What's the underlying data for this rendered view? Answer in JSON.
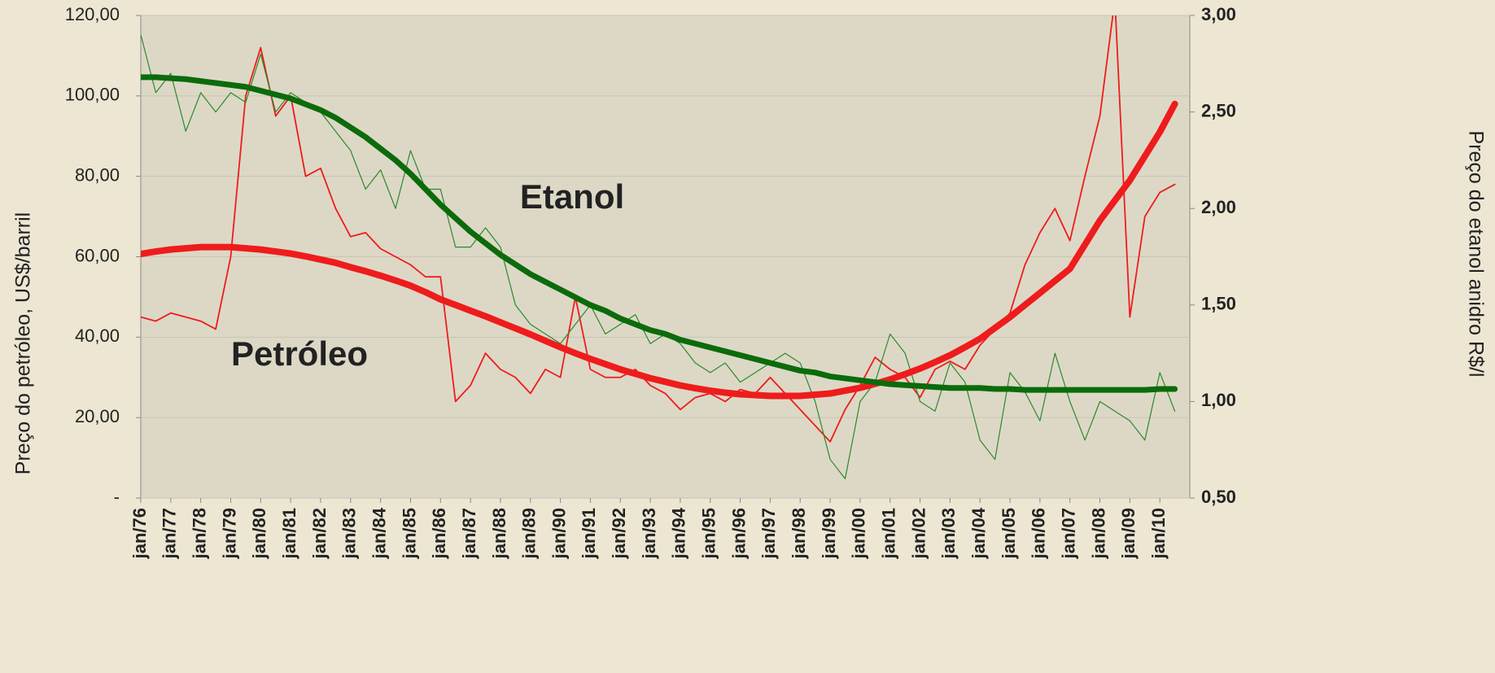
{
  "chart_data": {
    "type": "line",
    "y_label": "Preço do petróleo, US$/barril",
    "y2_label": "Preço do etanol anidro R$/l",
    "annotations": [
      {
        "text": "Etanol",
        "color": "#0b6b0b"
      },
      {
        "text": "Petróleo",
        "color": "#ee1c1c"
      }
    ],
    "categories": [
      "jan/76",
      null,
      "jan/77",
      null,
      "jan/78",
      null,
      "jan/79",
      null,
      "jan/80",
      null,
      "jan/81",
      null,
      "jan/82",
      null,
      "jan/83",
      null,
      "jan/84",
      null,
      "jan/85",
      null,
      "jan/86",
      null,
      "jan/87",
      null,
      "jan/88",
      null,
      "jan/89",
      null,
      "jan/90",
      null,
      "jan/91",
      null,
      "jan/92",
      null,
      "jan/93",
      null,
      "jan/94",
      null,
      "jan/95",
      null,
      "jan/96",
      null,
      "jan/97",
      null,
      "jan/98",
      null,
      "jan/99",
      null,
      "jan/00",
      null,
      "jan/01",
      null,
      "jan/02",
      null,
      "jan/03",
      null,
      "jan/04",
      null,
      "jan/05",
      null,
      "jan/06",
      null,
      "jan/07",
      null,
      "jan/08",
      null,
      "jan/09",
      null,
      "jan/10",
      null
    ],
    "series": [
      {
        "name": "Petróleo",
        "color": "#ee1c1c",
        "width": 1.8,
        "values": [
          45,
          44,
          46,
          45,
          44,
          42,
          60,
          100,
          112,
          95,
          100,
          80,
          82,
          72,
          65,
          66,
          62,
          60,
          58,
          55,
          55,
          24,
          28,
          36,
          32,
          30,
          26,
          32,
          30,
          50,
          32,
          30,
          30,
          32,
          28,
          26,
          22,
          25,
          26,
          24,
          27,
          26,
          30,
          26,
          22,
          18,
          14,
          22,
          28,
          35,
          32,
          30,
          25,
          32,
          34,
          32,
          38,
          42,
          46,
          58,
          66,
          72,
          64,
          80,
          95,
          124,
          45,
          70,
          76,
          78
        ]
      },
      {
        "name": "Etanol",
        "color": "#2a8a2a",
        "width": 1.2,
        "axis": "y2",
        "values": [
          2.9,
          2.6,
          2.7,
          2.4,
          2.6,
          2.5,
          2.6,
          2.55,
          2.8,
          2.5,
          2.6,
          2.55,
          2.5,
          2.4,
          2.3,
          2.1,
          2.2,
          2.0,
          2.3,
          2.1,
          2.1,
          1.8,
          1.8,
          1.9,
          1.8,
          1.5,
          1.4,
          1.35,
          1.3,
          1.4,
          1.5,
          1.35,
          1.4,
          1.45,
          1.3,
          1.35,
          1.3,
          1.2,
          1.15,
          1.2,
          1.1,
          1.15,
          1.2,
          1.25,
          1.2,
          1.0,
          0.7,
          0.6,
          1.0,
          1.1,
          1.35,
          1.25,
          1.0,
          0.95,
          1.2,
          1.1,
          0.8,
          0.7,
          1.15,
          1.05,
          0.9,
          1.25,
          1.0,
          0.8,
          1.0,
          0.95,
          0.9,
          0.8,
          1.15,
          0.95
        ]
      },
      {
        "color": "#ee1c1c",
        "width": 8,
        "values": [
          60.7,
          61.3,
          61.8,
          62.1,
          62.4,
          62.4,
          62.4,
          62.1,
          61.8,
          61.3,
          60.8,
          60.1,
          59.3,
          58.5,
          57.4,
          56.4,
          55.3,
          54.1,
          52.8,
          51.2,
          49.4,
          48.0,
          46.6,
          45.2,
          43.7,
          42.2,
          40.7,
          39.1,
          37.5,
          36.0,
          34.6,
          33.3,
          32.0,
          30.9,
          29.8,
          28.9,
          28.0,
          27.3,
          26.7,
          26.2,
          25.8,
          25.6,
          25.4,
          25.4,
          25.4,
          25.7,
          26.0,
          26.7,
          27.4,
          28.4,
          29.5,
          30.8,
          32.2,
          33.8,
          35.5,
          37.5,
          39.6,
          42.3,
          45.0,
          48.0,
          51.0,
          54.0,
          57.0,
          63.0,
          69.0,
          74.0,
          79.0,
          85.0,
          91.0,
          98.0
        ]
      },
      {
        "color": "#0b6b0b",
        "width": 7,
        "axis": "y2",
        "values": [
          2.68,
          2.68,
          2.675,
          2.67,
          2.66,
          2.65,
          2.64,
          2.63,
          2.61,
          2.59,
          2.57,
          2.54,
          2.51,
          2.47,
          2.42,
          2.37,
          2.31,
          2.25,
          2.18,
          2.1,
          2.02,
          1.95,
          1.88,
          1.82,
          1.76,
          1.71,
          1.66,
          1.62,
          1.58,
          1.54,
          1.5,
          1.47,
          1.43,
          1.4,
          1.37,
          1.35,
          1.32,
          1.3,
          1.28,
          1.26,
          1.24,
          1.22,
          1.2,
          1.18,
          1.16,
          1.15,
          1.13,
          1.12,
          1.11,
          1.1,
          1.09,
          1.085,
          1.08,
          1.075,
          1.07,
          1.07,
          1.07,
          1.065,
          1.065,
          1.06,
          1.06,
          1.06,
          1.06,
          1.06,
          1.06,
          1.06,
          1.06,
          1.06,
          1.065,
          1.065
        ]
      }
    ],
    "ylim": [
      0,
      120
    ],
    "yticks": [
      {
        "value": 0,
        "label": "-"
      },
      {
        "value": 20,
        "label": "20,00"
      },
      {
        "value": 40,
        "label": "40,00"
      },
      {
        "value": 60,
        "label": "60,00"
      },
      {
        "value": 80,
        "label": "80,00"
      },
      {
        "value": 100,
        "label": "100,00"
      },
      {
        "value": 120,
        "label": "120,00"
      }
    ],
    "y2lim": [
      0.5,
      3.0
    ],
    "y2ticks": [
      {
        "value": 0.5,
        "label": "0,50"
      },
      {
        "value": 1.0,
        "label": "1,00"
      },
      {
        "value": 1.5,
        "label": "1,50"
      },
      {
        "value": 2.0,
        "label": "2,00"
      },
      {
        "value": 2.5,
        "label": "2,50"
      },
      {
        "value": 3.0,
        "label": "3,00"
      }
    ],
    "grid": true
  }
}
